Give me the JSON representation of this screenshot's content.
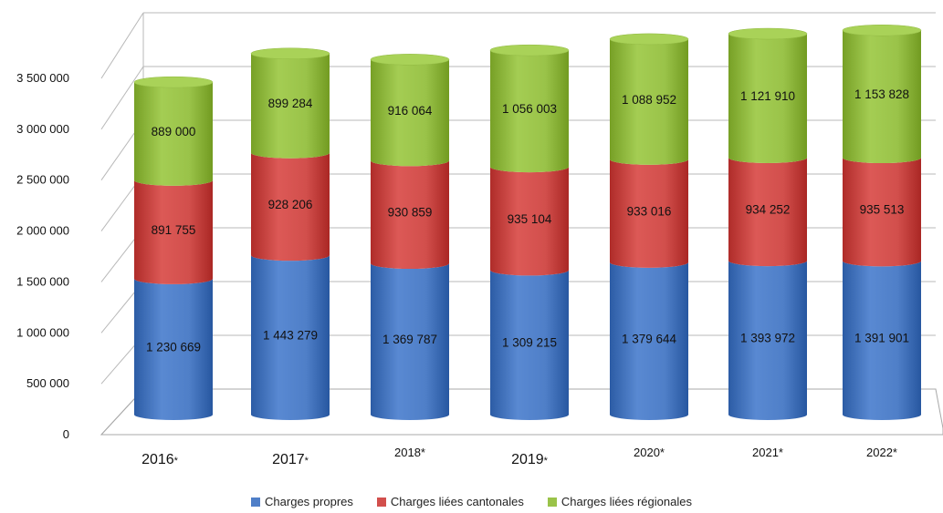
{
  "chart_data": {
    "type": "bar",
    "stacked": true,
    "style": "3d-cylinder",
    "categories": [
      "2016",
      "2017",
      "2018",
      "2019",
      "2020",
      "2021",
      "2022"
    ],
    "category_marks": [
      "*",
      "*",
      "*",
      "*",
      "*",
      "*",
      "*"
    ],
    "series": [
      {
        "name": "Charges propres",
        "color": "#4f7fc8",
        "values": [
          1230669,
          1443279,
          1369787,
          1309215,
          1379644,
          1393972,
          1391901
        ],
        "labels": [
          "1 230 669",
          "1 443 279",
          "1 369 787",
          "1 309 215",
          "1 379 644",
          "1 393 972",
          "1 391 901"
        ]
      },
      {
        "name": "Charges liées cantonales",
        "color": "#d24f4c",
        "values": [
          891755,
          928206,
          930859,
          935104,
          933016,
          934252,
          935513
        ],
        "labels": [
          "891 755",
          "928 206",
          "930 859",
          "935 104",
          "933 016",
          "934 252",
          "935 513"
        ]
      },
      {
        "name": "Charges liées régionales",
        "color": "#9ac349",
        "values": [
          889000,
          899284,
          916064,
          1056003,
          1088952,
          1121910,
          1153828
        ],
        "labels": [
          "889 000",
          "899 284",
          "916 064",
          "1 056 003",
          "1 088 952",
          "1 121 910",
          "1 153 828"
        ]
      }
    ],
    "yticks": [
      0,
      500000,
      1000000,
      1500000,
      2000000,
      2500000,
      3000000,
      3500000
    ],
    "ytick_labels": [
      "0",
      "500 000",
      "1 000 000",
      "1 500 000",
      "2 000 000",
      "2 500 000",
      "3 000 000",
      "3 500 000"
    ],
    "ylim": [
      0,
      3500000
    ],
    "grid": true,
    "legend_position": "bottom"
  }
}
